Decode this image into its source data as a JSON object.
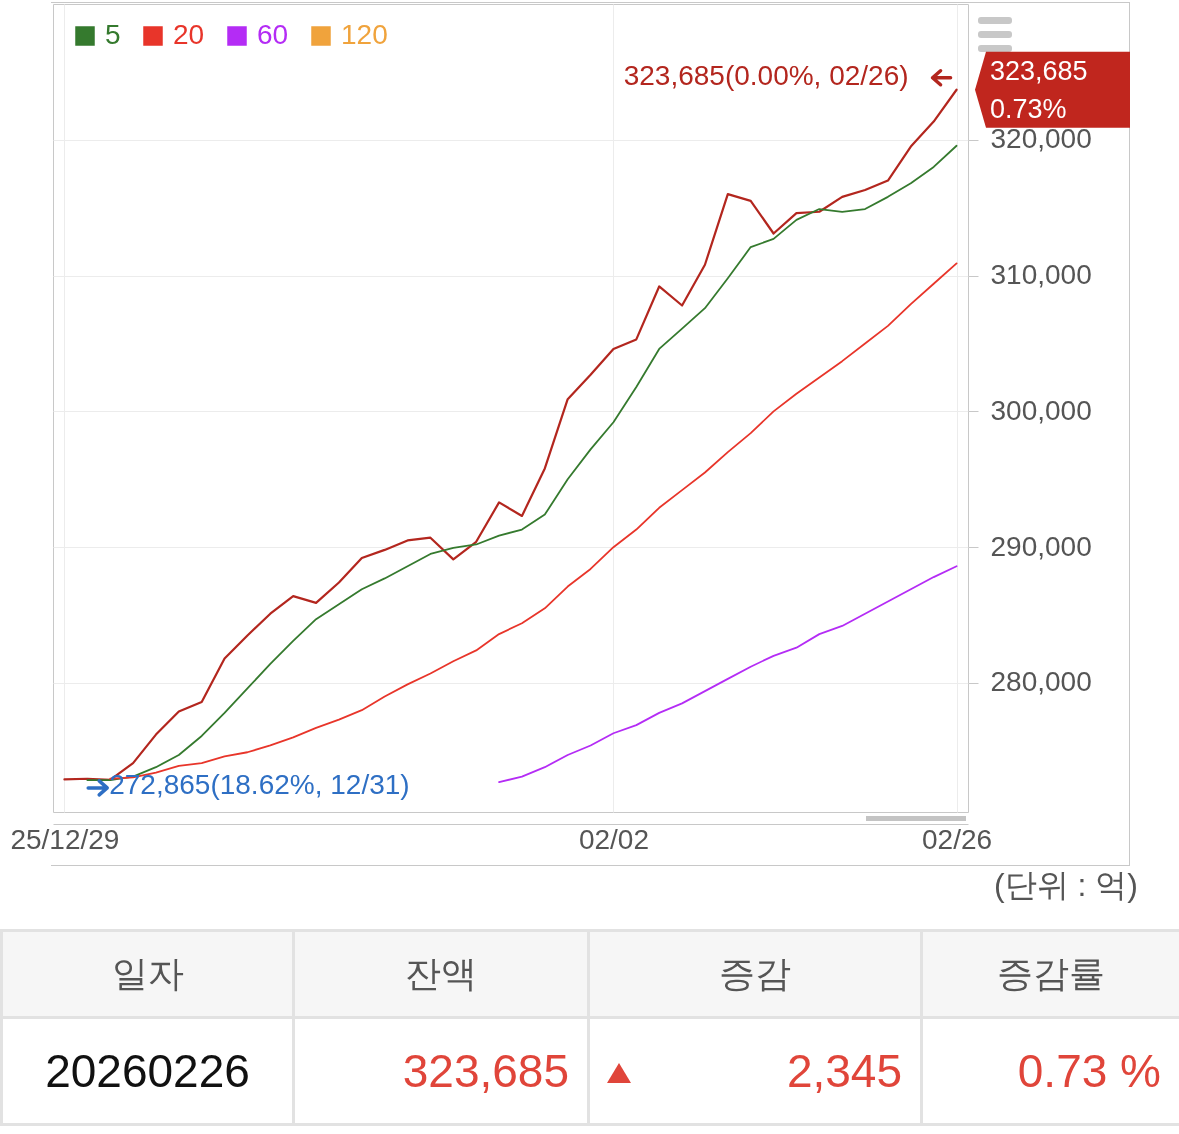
{
  "chart_data": [
    {
      "type": "line",
      "categories": [
        "25/12/29",
        null,
        null,
        null,
        null,
        null,
        null,
        null,
        null,
        null,
        null,
        null,
        null,
        null,
        null,
        null,
        null,
        null,
        null,
        null,
        null,
        null,
        null,
        null,
        "02/02",
        null,
        null,
        null,
        null,
        null,
        null,
        null,
        null,
        null,
        null,
        null,
        null,
        null,
        null,
        "02/26"
      ],
      "series": [
        {
          "color": "#b3261e",
          "values": [
            272900,
            272950,
            272865,
            274100,
            276200,
            277900,
            278600,
            281800,
            283500,
            285100,
            286400,
            285900,
            287400,
            289200,
            289800,
            290500,
            290700,
            289100,
            290400,
            293300,
            292300,
            295800,
            300900,
            302700,
            304600,
            305300,
            309200,
            307800,
            310800,
            316000,
            315500,
            313100,
            314600,
            314700,
            315800,
            316300,
            317000,
            319500,
            321340,
            323685
          ]
        },
        {
          "name": "5",
          "color": "#357a2e",
          "values": [
            null,
            272850,
            272850,
            273100,
            273800,
            274700,
            276100,
            277800,
            279600,
            281400,
            283100,
            284700,
            285800,
            286900,
            287700,
            288600,
            289500,
            289950,
            290200,
            290850,
            291300,
            292400,
            295000,
            297200,
            299200,
            301800,
            304600,
            306100,
            307600,
            309800,
            312100,
            312700,
            314100,
            314900,
            314700,
            314900,
            315800,
            316800,
            318000,
            319560
          ]
        },
        {
          "name": "20",
          "color": "#e8352a",
          "values": [
            null,
            null,
            272950,
            273050,
            273400,
            273900,
            274100,
            274600,
            274900,
            275400,
            276000,
            276700,
            277300,
            278000,
            279000,
            279900,
            280700,
            281600,
            282400,
            283600,
            284400,
            285500,
            287100,
            288400,
            290000,
            291300,
            292900,
            294200,
            295500,
            297000,
            298400,
            300000,
            301300,
            302500,
            303700,
            305000,
            306300,
            307900,
            309400,
            310900
          ]
        },
        {
          "name": "60",
          "color": "#b42cf5",
          "values": [
            null,
            null,
            null,
            null,
            null,
            null,
            null,
            null,
            null,
            null,
            null,
            null,
            null,
            null,
            null,
            null,
            null,
            null,
            null,
            272700,
            273100,
            273800,
            274700,
            275400,
            276300,
            276900,
            277800,
            278500,
            279400,
            280300,
            281200,
            282000,
            282600,
            283600,
            284200,
            285100,
            286000,
            286900,
            287800,
            288600
          ]
        },
        {
          "name": "120",
          "color": "#f0a33c",
          "values": [
            null,
            null,
            null,
            null,
            null,
            null,
            null,
            null,
            null,
            null,
            null,
            null,
            null,
            null,
            null,
            null,
            null,
            null,
            null,
            null,
            null,
            null,
            null,
            null,
            null,
            null,
            null,
            null,
            null,
            null,
            null,
            null,
            null,
            null,
            null,
            null,
            null,
            null,
            null,
            null
          ]
        }
      ],
      "ylim": [
        270500,
        330000
      ],
      "yticks": [
        {
          "value": 280000,
          "label": "280,000"
        },
        {
          "value": 290000,
          "label": "290,000"
        },
        {
          "value": 300000,
          "label": "300,000"
        },
        {
          "value": 310000,
          "label": "310,000"
        },
        {
          "value": 320000,
          "label": "320,000"
        }
      ],
      "grid": true,
      "legend": "top left",
      "annotations": [
        {
          "text": "323,685(0.00%, 02/26)",
          "x": "02/26",
          "y": 323685
        },
        "272,865(18.62%, 12/31)",
        "323,685",
        "0.73%",
        "(단위 : 억)"
      ]
    },
    {
      "type": "other",
      "categories": [
        "일자",
        "잔액",
        "증감",
        "증감률"
      ],
      "annotations": [
        "20260226",
        "323,685",
        "2,345",
        "0.73 %"
      ]
    }
  ]
}
